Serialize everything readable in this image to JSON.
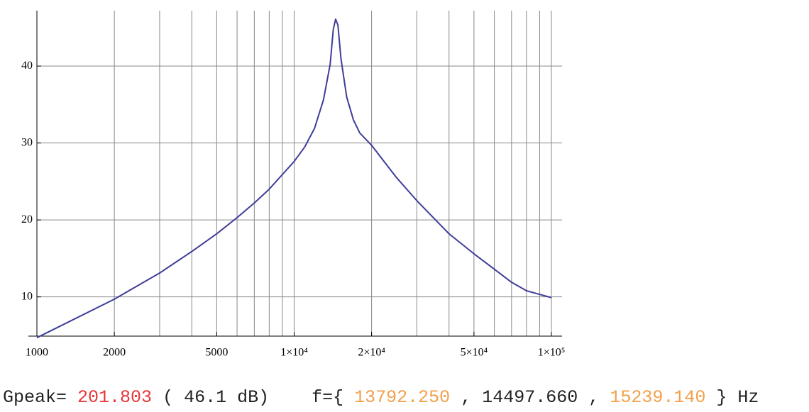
{
  "chart_data": {
    "type": "line",
    "x_scale": "log",
    "x": [
      1000,
      2000,
      3000,
      4000,
      5000,
      6000,
      7000,
      8000,
      9000,
      10000,
      11000,
      12000,
      13000,
      13800,
      14200,
      14500,
      14800,
      15200,
      16000,
      17000,
      18000,
      20000,
      25000,
      30000,
      40000,
      50000,
      60000,
      70000,
      80000,
      100000
    ],
    "values": [
      4.7,
      9.7,
      13.1,
      15.9,
      18.2,
      20.3,
      22.2,
      24.0,
      25.9,
      27.6,
      29.5,
      31.9,
      35.6,
      40.2,
      44.8,
      46.1,
      45.3,
      41.0,
      36.0,
      33.0,
      31.3,
      29.7,
      25.5,
      22.5,
      18.2,
      15.6,
      13.6,
      11.9,
      10.8,
      9.9
    ],
    "color": "#3f3d99",
    "xlim": [
      1000,
      110000
    ],
    "ylim": [
      4.9,
      47.2
    ],
    "xticks": [
      1000,
      2000,
      5000,
      {
        "value": 10000,
        "label": "1×10⁴"
      },
      {
        "value": 20000,
        "label": "2×10⁴"
      },
      {
        "value": 50000,
        "label": "5×10⁴"
      },
      {
        "value": 100000,
        "label": "1×10⁵"
      }
    ],
    "xgrid": [
      2000,
      3000,
      4000,
      5000,
      6000,
      7000,
      8000,
      9000,
      10000,
      20000,
      30000,
      40000,
      50000,
      60000,
      70000,
      80000,
      90000,
      100000
    ],
    "yticks": [
      10,
      20,
      30,
      40
    ],
    "grid": true,
    "readout": {
      "gpeak_label": "Gpeak=",
      "gpeak": "201.803",
      "db": "( 46.1 dB)",
      "f_label": "f={",
      "f": [
        "13792.250",
        "14497.660",
        "15239.140"
      ],
      "sep": ",",
      "close": "} Hz"
    }
  }
}
